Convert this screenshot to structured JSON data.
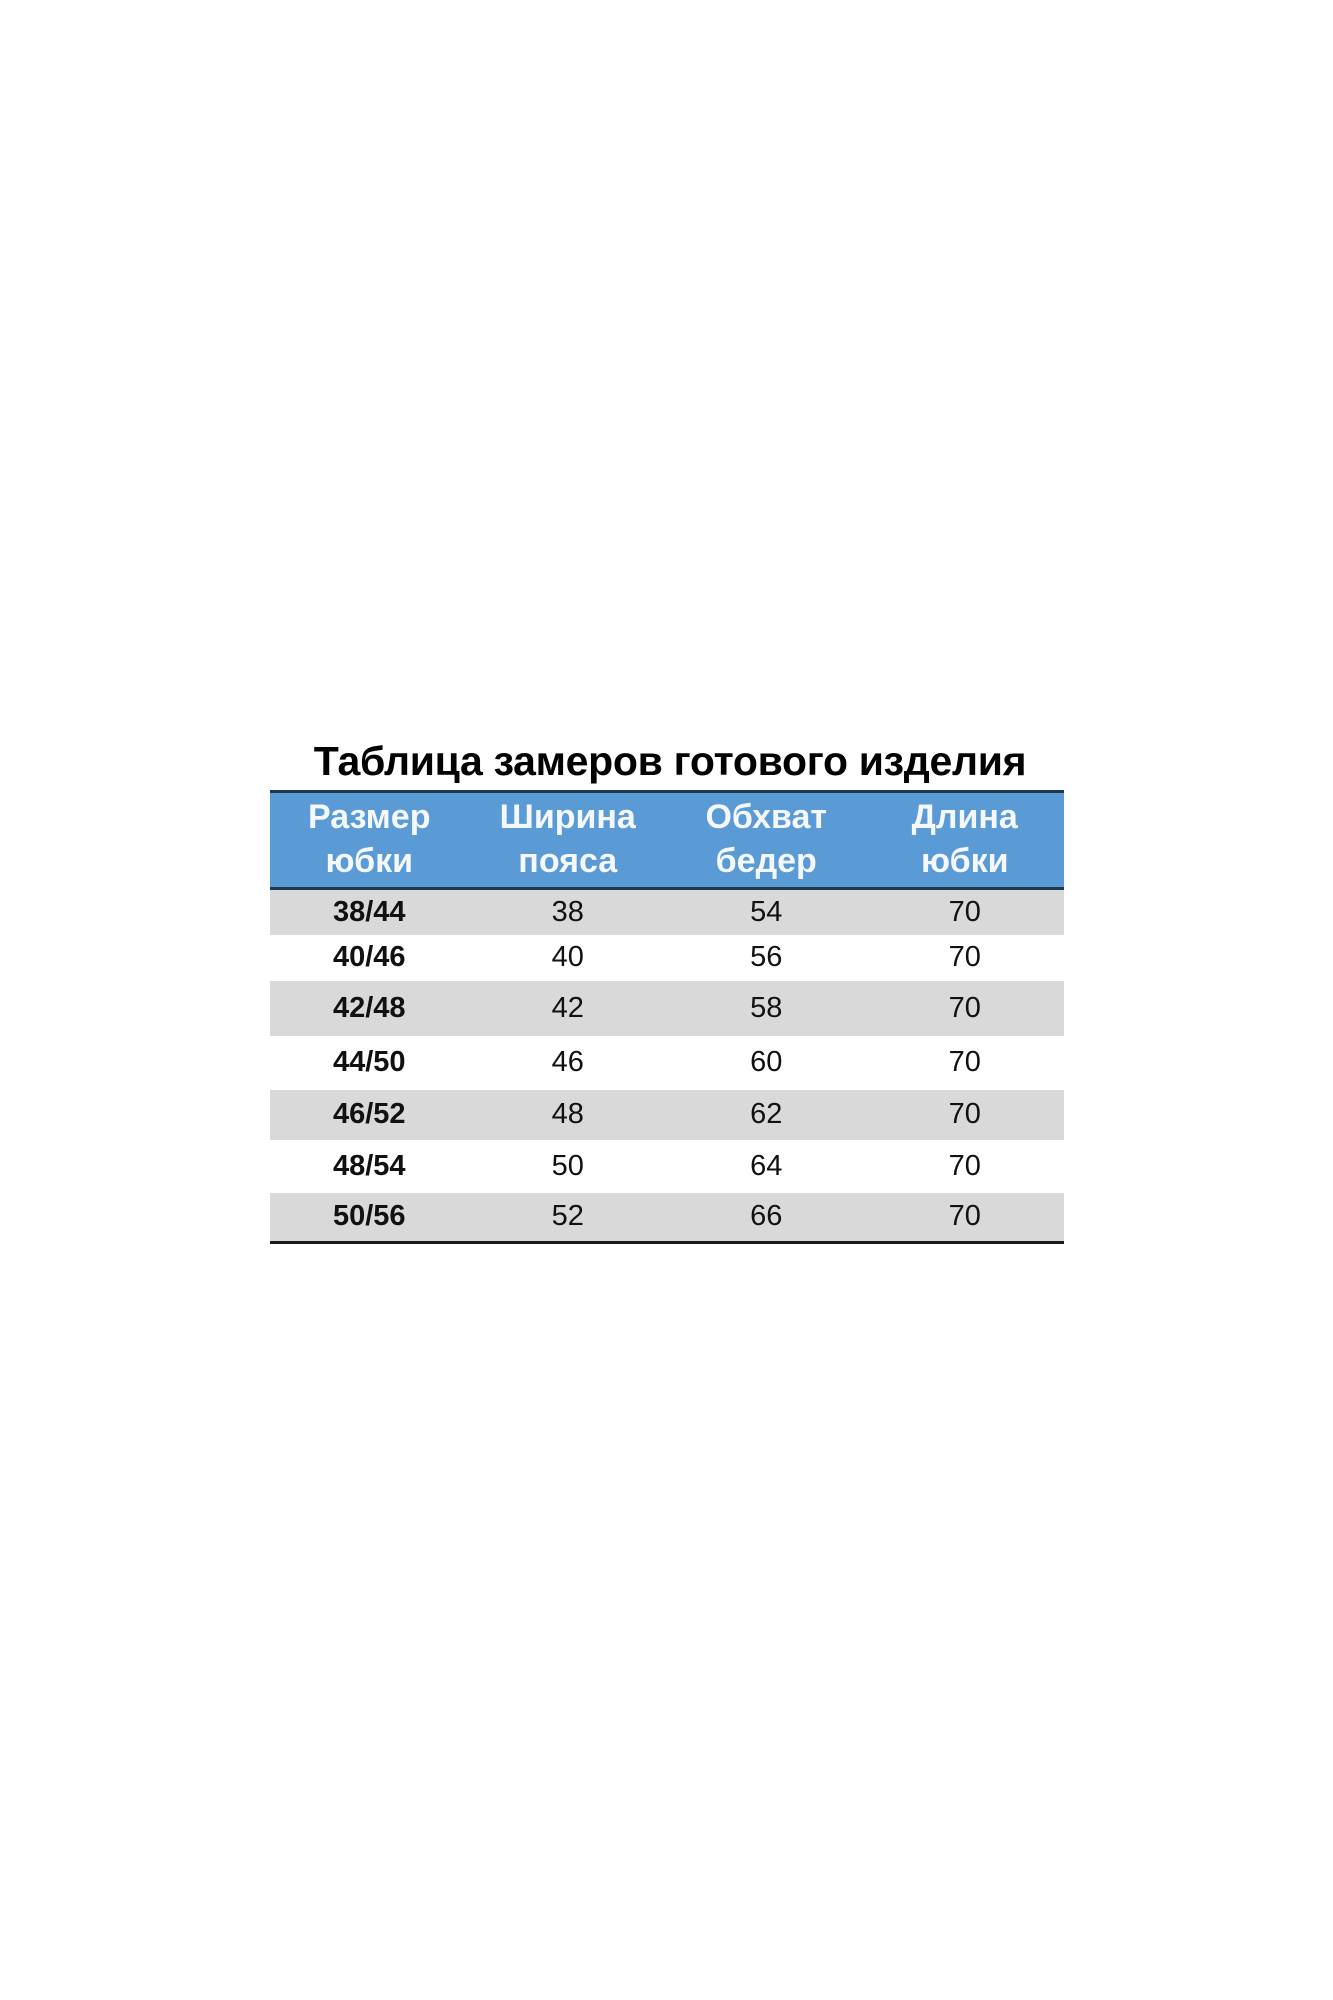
{
  "title": "Таблица замеров готового изделия",
  "header_color": "#5b9bd5",
  "columns": [
    {
      "line1": "Размер",
      "line2": "юбки"
    },
    {
      "line1": "Ширина",
      "line2": "пояса"
    },
    {
      "line1": "Обхват",
      "line2": "бедер"
    },
    {
      "line1": "Длина",
      "line2": "юбки"
    }
  ],
  "rows": [
    [
      "38/44",
      "38",
      "54",
      "70"
    ],
    [
      "40/46",
      "40",
      "56",
      "70"
    ],
    [
      "42/48",
      "42",
      "58",
      "70"
    ],
    [
      "44/50",
      "46",
      "60",
      "70"
    ],
    [
      "46/52",
      "48",
      "62",
      "70"
    ],
    [
      "48/54",
      "50",
      "64",
      "70"
    ],
    [
      "50/56",
      "52",
      "66",
      "70"
    ]
  ]
}
